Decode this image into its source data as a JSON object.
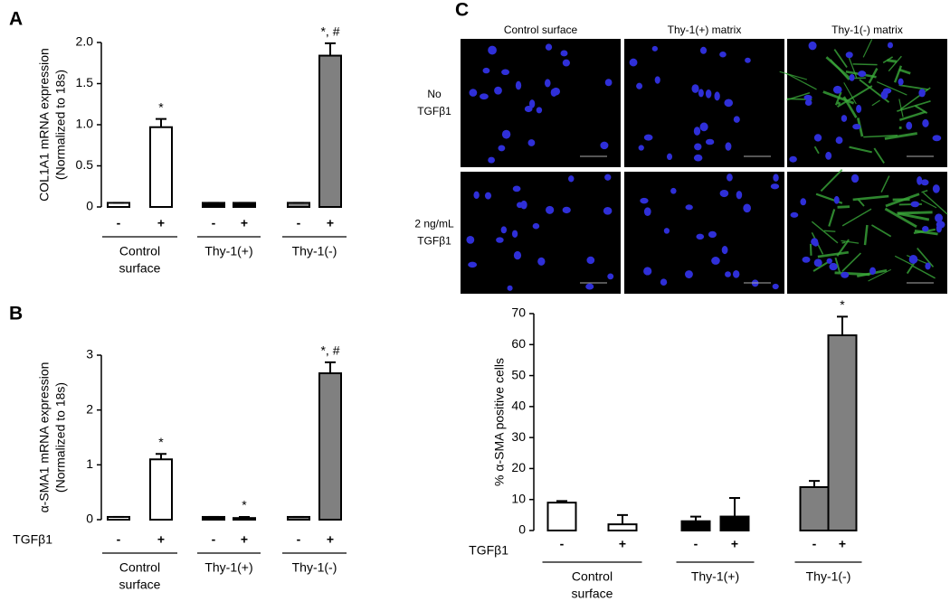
{
  "chart_data": [
    {
      "type": "bar",
      "panel_label": "A",
      "ylabel": [
        "COL1A1 mRNA expression",
        "(Normalized to 18s)"
      ],
      "categories": [
        "-",
        "+",
        "-",
        "+",
        "-",
        "+"
      ],
      "groups": [
        [
          "Control",
          "surface"
        ],
        [
          "Thy-1(+)"
        ],
        [
          "Thy-1(-)"
        ]
      ],
      "values": [
        0.05,
        0.97,
        0.05,
        0.05,
        0.05,
        1.84
      ],
      "errors": [
        0,
        0.1,
        0,
        0,
        0,
        0.15
      ],
      "annotations": [
        null,
        "*",
        null,
        null,
        null,
        "*, #"
      ],
      "colors": [
        "#ffffff",
        "#ffffff",
        "#000000",
        "#000000",
        "#808080",
        "#808080"
      ],
      "ylim": [
        0,
        2
      ],
      "yticks": [
        0,
        0.5,
        {
          "value": 1,
          "label": "1.0"
        },
        1.5,
        {
          "value": 2,
          "label": "2.0"
        }
      ]
    },
    {
      "type": "bar",
      "panel_label": "B",
      "ylabel": [
        "α-SMA1 mRNA expression",
        "(Normalized to 18s)"
      ],
      "row_label": "TGFβ1",
      "categories": [
        "-",
        "+",
        "-",
        "+",
        "-",
        "+"
      ],
      "groups": [
        [
          "Control",
          "surface"
        ],
        [
          "Thy-1(+)"
        ],
        [
          "Thy-1(-)"
        ]
      ],
      "values": [
        0.05,
        1.1,
        0.05,
        0.03,
        0.05,
        2.67
      ],
      "errors": [
        0,
        0.1,
        0,
        0.02,
        0,
        0.2
      ],
      "annotations": [
        null,
        "*",
        null,
        "*",
        null,
        "*, #"
      ],
      "colors": [
        "#ffffff",
        "#ffffff",
        "#000000",
        "#000000",
        "#808080",
        "#808080"
      ],
      "ylim": [
        0,
        3
      ],
      "yticks": [
        0,
        1,
        2,
        3
      ]
    },
    {
      "type": "bar",
      "panel_label": "C",
      "ylabel": [
        "% α-SMA positive cells"
      ],
      "row_label": "TGFβ1",
      "categories": [
        "-",
        "+",
        "-",
        "+",
        "-",
        "+"
      ],
      "groups": [
        [
          "Control",
          "surface"
        ],
        [
          "Thy-1(+)"
        ],
        [
          "Thy-1(-)"
        ]
      ],
      "values": [
        9,
        2,
        3,
        4.5,
        14,
        63
      ],
      "errors": [
        0.5,
        3,
        1.5,
        6,
        2,
        6
      ],
      "annotations": [
        null,
        null,
        null,
        null,
        null,
        "*"
      ],
      "colors": [
        "#ffffff",
        "#ffffff",
        "#000000",
        "#000000",
        "#808080",
        "#808080"
      ],
      "ylim": [
        0,
        70
      ],
      "yticks": [
        0,
        10,
        20,
        30,
        40,
        50,
        60,
        70
      ]
    }
  ],
  "micrographs": {
    "columns": [
      "Control surface",
      "Thy-1(+) matrix",
      "Thy-1(-) matrix"
    ],
    "rows": [
      [
        "No",
        "TGFβ1"
      ],
      [
        "2 ng/mL",
        "TGFβ1"
      ]
    ]
  }
}
